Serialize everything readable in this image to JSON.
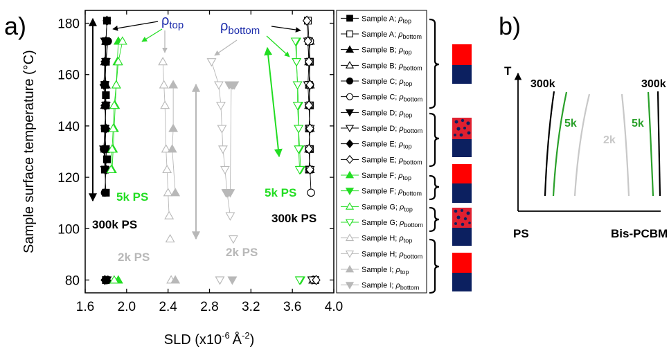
{
  "panel_a_letter": "a)",
  "panel_b_letter": "b)",
  "chart_data": [
    {
      "type": "scatter",
      "panel": "a)",
      "xlabel": "SLD (x10",
      "xlabel_sup": "-6",
      "xlabel_unit": "Å",
      "xlabel_unit_sup": "-2",
      "xlabel_close": ")",
      "ylabel": "Sample surface temperature (",
      "ylabel_unit": "°C",
      "ylabel_close": ")",
      "xlim": [
        1.6,
        4.0
      ],
      "ylim": [
        75,
        185
      ],
      "xticks": [
        "1.6",
        "2.0",
        "2.4",
        "2.8",
        "3.2",
        "3.6",
        "4.0"
      ],
      "yticks": [
        "80",
        "100",
        "120",
        "140",
        "160",
        "180"
      ],
      "annotations": {
        "rho_top": "ρ",
        "rho_top_sub": "top",
        "rho_bottom": "ρ",
        "rho_bottom_sub": "bottom",
        "ps_300k_left": "300k PS",
        "ps_300k_right": "300k PS",
        "ps_5k_left": "5k PS",
        "ps_5k_right": "5k PS",
        "ps_2k_left": "2k PS",
        "ps_2k_right": "2k PS"
      },
      "colors": {
        "black": "#000000",
        "green": "#22dd22",
        "gray": "#b8b8b8",
        "red": "#ff0000",
        "navy": "#0c2060"
      },
      "series": [
        {
          "name": "Sample A;",
          "rho": "ρ",
          "sub": "top",
          "marker": "square",
          "filled": true,
          "color": "#000000",
          "x": [
            1.8,
            1.79,
            1.8,
            1.79,
            1.8,
            1.79,
            1.8,
            1.8,
            1.81,
            1.8,
            1.81,
            1.8
          ],
          "y": [
            80,
            123,
            131,
            139,
            148,
            156,
            165,
            173,
            181,
            114,
            127,
            152
          ]
        },
        {
          "name": "Sample A;",
          "rho": "ρ",
          "sub": "bottom",
          "marker": "square",
          "filled": false,
          "color": "#000000",
          "x": [
            3.82,
            3.76,
            3.77,
            3.76,
            3.77,
            3.76,
            3.77,
            3.76,
            3.75
          ],
          "y": [
            80,
            123,
            131,
            139,
            148,
            156,
            165,
            173,
            181
          ]
        },
        {
          "name": "Sample B;",
          "rho": "ρ",
          "sub": "top",
          "marker": "triangle-up",
          "filled": true,
          "color": "#000000",
          "x": [
            1.82,
            1.8,
            1.79,
            1.8,
            1.79,
            1.8,
            1.79,
            1.8
          ],
          "y": [
            80,
            123,
            131,
            139,
            148,
            156,
            165,
            173
          ]
        },
        {
          "name": "Sample B;",
          "rho": "ρ",
          "sub": "bottom",
          "marker": "triangle-up",
          "filled": false,
          "color": "#000000",
          "x": [
            3.8,
            3.77,
            3.76,
            3.77,
            3.76,
            3.77,
            3.76,
            3.77
          ],
          "y": [
            80,
            123,
            131,
            139,
            148,
            156,
            165,
            173
          ]
        },
        {
          "name": "Sample C;",
          "rho": "ρ",
          "sub": "top",
          "marker": "circle",
          "filled": true,
          "color": "#000000",
          "x": [
            1.8,
            1.79,
            1.8,
            1.78,
            1.79,
            1.8,
            1.79,
            1.8,
            1.82
          ],
          "y": [
            80,
            114,
            123,
            131,
            139,
            148,
            156,
            165,
            173
          ]
        },
        {
          "name": "Sample C;",
          "rho": "ρ",
          "sub": "bottom",
          "marker": "circle",
          "filled": false,
          "color": "#000000",
          "x": [
            3.81,
            3.78,
            3.77,
            3.76,
            3.77,
            3.76,
            3.77,
            3.76,
            3.77
          ],
          "y": [
            80,
            114,
            123,
            131,
            139,
            148,
            156,
            165,
            173
          ]
        },
        {
          "name": "Sample D;",
          "rho": "ρ",
          "sub": "top",
          "marker": "triangle-down",
          "filled": true,
          "color": "#000000",
          "x": [
            1.81,
            1.79,
            1.78,
            1.79,
            1.8,
            1.79,
            1.8,
            1.79
          ],
          "y": [
            80,
            123,
            131,
            139,
            148,
            156,
            165,
            173
          ]
        },
        {
          "name": "Sample D;",
          "rho": "ρ",
          "sub": "bottom",
          "marker": "triangle-down",
          "filled": false,
          "color": "#000000",
          "x": [
            3.79,
            3.77,
            3.76,
            3.77,
            3.76,
            3.75,
            3.76,
            3.75
          ],
          "y": [
            80,
            123,
            131,
            139,
            148,
            156,
            165,
            173
          ]
        },
        {
          "name": "Sample E;",
          "rho": "ρ",
          "sub": "top",
          "marker": "diamond",
          "filled": true,
          "color": "#000000",
          "x": [
            1.79,
            1.8,
            1.79,
            1.8,
            1.79,
            1.78,
            1.79,
            1.8,
            1.81
          ],
          "y": [
            80,
            123,
            131,
            139,
            148,
            156,
            165,
            173,
            181
          ]
        },
        {
          "name": "Sample E;",
          "rho": "ρ",
          "sub": "bottom",
          "marker": "diamond",
          "filled": false,
          "color": "#000000",
          "x": [
            3.83,
            3.77,
            3.76,
            3.77,
            3.76,
            3.77,
            3.76,
            3.75,
            3.74
          ],
          "y": [
            80,
            123,
            131,
            139,
            148,
            156,
            165,
            173,
            181
          ]
        },
        {
          "name": "Sample F;",
          "rho": "ρ",
          "sub": "top",
          "marker": "triangle-up",
          "filled": true,
          "color": "#22dd22",
          "x": [
            1.92,
            1.86,
            1.87,
            1.88,
            1.89,
            1.9,
            1.91,
            1.92
          ],
          "y": [
            80,
            123,
            131,
            139,
            148,
            156,
            165,
            173
          ]
        },
        {
          "name": "Sample F;",
          "rho": "ρ",
          "sub": "bottom",
          "marker": "triangle-down",
          "filled": true,
          "color": "#22dd22",
          "x": [
            3.68,
            3.68,
            3.67,
            3.66,
            3.66,
            3.65,
            3.64,
            3.64
          ],
          "y": [
            80,
            123,
            131,
            139,
            148,
            156,
            165,
            173
          ]
        },
        {
          "name": "Sample G;",
          "rho": "ρ",
          "sub": "top",
          "marker": "triangle-up",
          "filled": false,
          "color": "#22dd22",
          "x": [
            1.88,
            1.85,
            1.86,
            1.87,
            1.88,
            1.9,
            1.92,
            1.96
          ],
          "y": [
            80,
            123,
            131,
            139,
            148,
            156,
            165,
            173
          ]
        },
        {
          "name": "Sample G;",
          "rho": "ρ",
          "sub": "bottom",
          "marker": "triangle-down",
          "filled": false,
          "color": "#22dd22",
          "x": [
            3.67,
            3.67,
            3.66,
            3.66,
            3.65,
            3.65,
            3.64,
            3.63
          ],
          "y": [
            80,
            123,
            131,
            139,
            148,
            156,
            165,
            173
          ]
        },
        {
          "name": "Sample H;",
          "rho": "ρ",
          "sub": "top",
          "marker": "triangle-up",
          "filled": false,
          "color": "#b8b8b8",
          "x": [
            2.43,
            2.42,
            2.41,
            2.4,
            2.39,
            2.38,
            2.37,
            2.36,
            2.35
          ],
          "y": [
            80,
            96,
            105,
            114,
            123,
            131,
            148,
            156,
            165
          ]
        },
        {
          "name": "Sample H;",
          "rho": "ρ",
          "sub": "bottom",
          "marker": "triangle-down",
          "filled": false,
          "color": "#b8b8b8",
          "x": [
            2.9,
            3.03,
            3.0,
            2.97,
            2.95,
            2.93,
            2.92,
            2.91,
            2.89,
            2.82
          ],
          "y": [
            80,
            96,
            105,
            114,
            123,
            131,
            139,
            148,
            156,
            165
          ]
        },
        {
          "name": "Sample I;",
          "rho": "ρ",
          "sub": "top",
          "marker": "triangle-up",
          "filled": true,
          "color": "#b8b8b8",
          "x": [
            2.47,
            2.47,
            2.45,
            2.44,
            2.45
          ],
          "y": [
            80,
            114,
            156,
            131,
            139
          ]
        },
        {
          "name": "Sample I;",
          "rho": "ρ",
          "sub": "bottom",
          "marker": "triangle-down",
          "filled": true,
          "color": "#b8b8b8",
          "x": [
            3.02,
            2.96,
            2.97,
            2.98,
            3.0,
            3.01,
            3.03,
            3.04,
            3.02,
            2.99
          ],
          "y": [
            80,
            114,
            114,
            114,
            114,
            156,
            156,
            156,
            156,
            156
          ]
        }
      ]
    },
    {
      "type": "line",
      "panel": "b)",
      "ylabel": "T",
      "xlabel_left": "PS",
      "xlabel_right": "Bis-PCBM",
      "curve_labels": {
        "k300_left": "300k",
        "k300_right": "300k",
        "k5_left": "5k",
        "k5_right": "5k",
        "k2": "2k"
      }
    }
  ]
}
